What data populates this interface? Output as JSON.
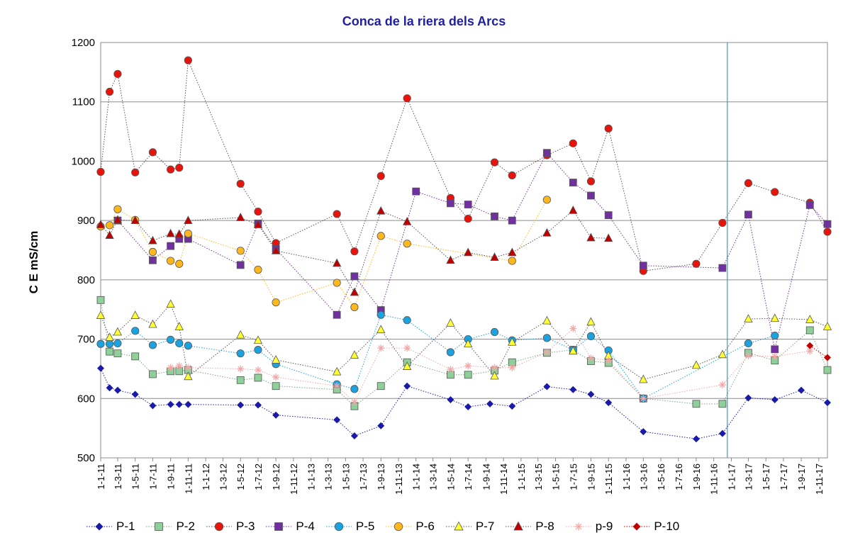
{
  "chart_data": {
    "type": "line",
    "title": "Conca de la riera dels Arcs",
    "ylabel": "C E    mS/cm",
    "xlabel": "",
    "ylim": [
      500,
      1200
    ],
    "yticks": [
      500,
      600,
      700,
      800,
      900,
      1000,
      1100,
      1200
    ],
    "grid": "horizontal",
    "legend": "bottom",
    "x_axis": "date",
    "xlim": [
      "2011-01-01",
      "2017-12-01"
    ],
    "xtick_labels": [
      "1-1-11",
      "1-3-11",
      "1-5-11",
      "1-7-11",
      "1-9-11",
      "1-11-11",
      "1-1-12",
      "1-3-12",
      "1-5-12",
      "1-7-12",
      "1-9-12",
      "1-11-12",
      "1-1-13",
      "1-3-13",
      "1-5-13",
      "1-7-13",
      "1-9-13",
      "1-11-13",
      "1-1-14",
      "1-3-14",
      "1-5-14",
      "1-7-14",
      "1-9-14",
      "1-11-14",
      "1-1-15",
      "1-3-15",
      "1-5-15",
      "1-7-15",
      "1-9-15",
      "1-11-15",
      "1-1-16",
      "1-3-16",
      "1-5-16",
      "1-7-16",
      "1-9-16",
      "1-11-16",
      "1-1-17",
      "1-3-17",
      "1-5-17",
      "1-7-17",
      "1-9-17",
      "1-11-17"
    ],
    "vline_date": "2016-12-18",
    "series": [
      {
        "name": "P-1",
        "color": "#1a1aa8",
        "marker": "diamond",
        "line": "#1a1aa8",
        "points": [
          [
            "2011-01-01",
            651
          ],
          [
            "2011-02-01",
            618
          ],
          [
            "2011-03-01",
            614
          ],
          [
            "2011-05-01",
            607
          ],
          [
            "2011-07-01",
            588
          ],
          [
            "2011-09-01",
            590
          ],
          [
            "2011-10-01",
            590
          ],
          [
            "2011-11-01",
            590
          ],
          [
            "2012-05-01",
            589
          ],
          [
            "2012-07-01",
            589
          ],
          [
            "2012-09-01",
            572
          ],
          [
            "2013-04-01",
            564
          ],
          [
            "2013-06-01",
            537
          ],
          [
            "2013-09-01",
            554
          ],
          [
            "2013-12-01",
            621
          ],
          [
            "2014-05-01",
            598
          ],
          [
            "2014-07-01",
            586
          ],
          [
            "2014-09-15",
            591
          ],
          [
            "2014-12-01",
            587
          ],
          [
            "2015-04-01",
            620
          ],
          [
            "2015-07-01",
            615
          ],
          [
            "2015-09-01",
            607
          ],
          [
            "2015-11-01",
            593
          ],
          [
            "2016-03-01",
            544
          ],
          [
            "2016-09-01",
            532
          ],
          [
            "2016-12-01",
            541
          ],
          [
            "2017-03-01",
            601
          ],
          [
            "2017-06-01",
            598
          ],
          [
            "2017-09-01",
            614
          ],
          [
            "2017-12-01",
            593
          ]
        ]
      },
      {
        "name": "P-2",
        "color": "#8fcf9a",
        "marker": "square",
        "line": "#7aa87f",
        "points": [
          [
            "2011-01-01",
            766
          ],
          [
            "2011-02-01",
            679
          ],
          [
            "2011-03-01",
            676
          ],
          [
            "2011-05-01",
            671
          ],
          [
            "2011-07-01",
            641
          ],
          [
            "2011-09-01",
            646
          ],
          [
            "2011-10-01",
            646
          ],
          [
            "2011-11-01",
            648
          ],
          [
            "2012-05-01",
            631
          ],
          [
            "2012-07-01",
            635
          ],
          [
            "2012-09-01",
            621
          ],
          [
            "2013-04-01",
            615
          ],
          [
            "2013-06-01",
            587
          ],
          [
            "2013-09-01",
            621
          ],
          [
            "2013-12-01",
            661
          ],
          [
            "2014-05-01",
            640
          ],
          [
            "2014-07-01",
            640
          ],
          [
            "2014-10-01",
            647
          ],
          [
            "2014-12-01",
            661
          ],
          [
            "2015-04-01",
            677
          ],
          [
            "2015-07-01",
            682
          ],
          [
            "2015-09-01",
            663
          ],
          [
            "2015-11-01",
            660
          ],
          [
            "2016-03-01",
            600
          ],
          [
            "2016-09-01",
            591
          ],
          [
            "2016-12-01",
            591
          ],
          [
            "2017-03-01",
            677
          ],
          [
            "2017-06-01",
            664
          ],
          [
            "2017-10-01",
            715
          ],
          [
            "2017-12-01",
            648
          ]
        ]
      },
      {
        "name": "P-3",
        "color": "#e8140c",
        "marker": "circle",
        "line": "#555555",
        "points": [
          [
            "2011-01-01",
            982
          ],
          [
            "2011-02-01",
            1117
          ],
          [
            "2011-03-01",
            1147
          ],
          [
            "2011-05-01",
            981
          ],
          [
            "2011-07-01",
            1015
          ],
          [
            "2011-09-01",
            986
          ],
          [
            "2011-10-01",
            989
          ],
          [
            "2011-11-01",
            1170
          ],
          [
            "2012-05-01",
            962
          ],
          [
            "2012-07-01",
            915
          ],
          [
            "2012-09-01",
            862
          ],
          [
            "2013-04-01",
            911
          ],
          [
            "2013-06-01",
            848
          ],
          [
            "2013-09-01",
            975
          ],
          [
            "2013-12-01",
            1106
          ],
          [
            "2014-05-01",
            938
          ],
          [
            "2014-07-01",
            903
          ],
          [
            "2014-10-01",
            998
          ],
          [
            "2014-12-01",
            976
          ],
          [
            "2015-04-01",
            1010
          ],
          [
            "2015-07-01",
            1030
          ],
          [
            "2015-09-01",
            966
          ],
          [
            "2015-11-01",
            1055
          ],
          [
            "2016-03-01",
            815
          ],
          [
            "2016-09-01",
            827
          ],
          [
            "2016-12-01",
            896
          ],
          [
            "2017-03-01",
            963
          ],
          [
            "2017-06-01",
            948
          ],
          [
            "2017-10-01",
            930
          ],
          [
            "2017-12-01",
            881
          ]
        ]
      },
      {
        "name": "P-4",
        "color": "#7030a0",
        "marker": "square",
        "line": "#7030a0",
        "points": [
          [
            "2011-03-01",
            900
          ],
          [
            "2011-07-01",
            833
          ],
          [
            "2011-09-01",
            857
          ],
          [
            "2011-10-01",
            869
          ],
          [
            "2011-11-01",
            869
          ],
          [
            "2012-05-01",
            825
          ],
          [
            "2012-07-01",
            895
          ],
          [
            "2012-09-01",
            852
          ],
          [
            "2013-04-01",
            741
          ],
          [
            "2013-06-01",
            806
          ],
          [
            "2013-09-01",
            749
          ],
          [
            "2014-01-01",
            949
          ],
          [
            "2014-05-01",
            929
          ],
          [
            "2014-07-01",
            927
          ],
          [
            "2014-10-01",
            907
          ],
          [
            "2014-12-01",
            900
          ],
          [
            "2015-04-01",
            1014
          ],
          [
            "2015-07-01",
            964
          ],
          [
            "2015-09-01",
            942
          ],
          [
            "2015-11-01",
            909
          ],
          [
            "2016-03-01",
            824
          ],
          [
            "2016-12-01",
            820
          ],
          [
            "2017-03-01",
            910
          ],
          [
            "2017-06-01",
            683
          ],
          [
            "2017-10-01",
            926
          ],
          [
            "2017-12-01",
            894
          ]
        ]
      },
      {
        "name": "P-5",
        "color": "#1aa3e0",
        "marker": "circle",
        "line": "#1aa3e0",
        "points": [
          [
            "2011-01-01",
            692
          ],
          [
            "2011-02-01",
            692
          ],
          [
            "2011-03-01",
            693
          ],
          [
            "2011-05-01",
            714
          ],
          [
            "2011-07-01",
            690
          ],
          [
            "2011-09-01",
            699
          ],
          [
            "2011-10-01",
            693
          ],
          [
            "2011-11-01",
            689
          ],
          [
            "2012-05-01",
            676
          ],
          [
            "2012-07-01",
            682
          ],
          [
            "2012-09-01",
            658
          ],
          [
            "2013-04-01",
            624
          ],
          [
            "2013-06-01",
            616
          ],
          [
            "2013-09-01",
            741
          ],
          [
            "2013-12-01",
            732
          ],
          [
            "2014-05-01",
            678
          ],
          [
            "2014-07-01",
            700
          ],
          [
            "2014-10-01",
            712
          ],
          [
            "2014-12-01",
            698
          ],
          [
            "2015-04-01",
            702
          ],
          [
            "2015-07-01",
            682
          ],
          [
            "2015-09-01",
            705
          ],
          [
            "2015-11-01",
            681
          ],
          [
            "2016-03-01",
            600
          ],
          [
            "2017-03-01",
            693
          ],
          [
            "2017-06-01",
            706
          ]
        ]
      },
      {
        "name": "P-6",
        "color": "#ffb81c",
        "marker": "circle",
        "line": "#ffb81c",
        "points": [
          [
            "2011-01-01",
            890
          ],
          [
            "2011-02-01",
            892
          ],
          [
            "2011-03-01",
            919
          ],
          [
            "2011-05-01",
            901
          ],
          [
            "2011-07-01",
            847
          ],
          [
            "2011-09-01",
            832
          ],
          [
            "2011-10-01",
            827
          ],
          [
            "2011-11-01",
            878
          ],
          [
            "2012-05-01",
            849
          ],
          [
            "2012-07-01",
            817
          ],
          [
            "2012-09-01",
            762
          ],
          [
            "2013-04-01",
            795
          ],
          [
            "2013-06-01",
            754
          ],
          [
            "2013-09-01",
            874
          ],
          [
            "2013-12-01",
            861
          ],
          [
            "2014-12-01",
            832
          ],
          [
            "2015-04-01",
            935
          ]
        ]
      },
      {
        "name": "P-7",
        "color": "#ffff33",
        "marker": "triangle",
        "line": "#555555",
        "points": [
          [
            "2011-01-01",
            740
          ],
          [
            "2011-02-01",
            703
          ],
          [
            "2011-03-01",
            712
          ],
          [
            "2011-05-01",
            740
          ],
          [
            "2011-07-01",
            725
          ],
          [
            "2011-09-01",
            759
          ],
          [
            "2011-10-01",
            721
          ],
          [
            "2011-11-01",
            637
          ],
          [
            "2012-05-01",
            707
          ],
          [
            "2012-07-01",
            698
          ],
          [
            "2012-09-01",
            665
          ],
          [
            "2013-04-01",
            645
          ],
          [
            "2013-06-01",
            673
          ],
          [
            "2013-09-01",
            716
          ],
          [
            "2013-12-01",
            654
          ],
          [
            "2014-05-01",
            727
          ],
          [
            "2014-07-01",
            692
          ],
          [
            "2014-10-01",
            638
          ],
          [
            "2014-12-01",
            695
          ],
          [
            "2015-04-01",
            731
          ],
          [
            "2015-07-01",
            680
          ],
          [
            "2015-09-01",
            729
          ],
          [
            "2015-11-01",
            672
          ],
          [
            "2016-03-01",
            632
          ],
          [
            "2016-09-01",
            656
          ],
          [
            "2016-12-01",
            674
          ],
          [
            "2017-03-01",
            734
          ],
          [
            "2017-06-01",
            735
          ],
          [
            "2017-10-01",
            733
          ],
          [
            "2017-12-01",
            721
          ]
        ]
      },
      {
        "name": "P-8",
        "color": "#c00000",
        "marker": "triangle",
        "line": "#555555",
        "points": [
          [
            "2011-01-01",
            893
          ],
          [
            "2011-02-01",
            875
          ],
          [
            "2011-03-01",
            901
          ],
          [
            "2011-05-01",
            900
          ],
          [
            "2011-07-01",
            866
          ],
          [
            "2011-09-01",
            878
          ],
          [
            "2011-10-01",
            877
          ],
          [
            "2011-11-01",
            900
          ],
          [
            "2012-05-01",
            905
          ],
          [
            "2012-07-01",
            893
          ],
          [
            "2012-09-01",
            849
          ],
          [
            "2013-04-01",
            828
          ],
          [
            "2013-06-01",
            779
          ],
          [
            "2013-09-01",
            916
          ],
          [
            "2013-12-01",
            898
          ],
          [
            "2014-05-01",
            833
          ],
          [
            "2014-07-01",
            846
          ],
          [
            "2014-10-01",
            838
          ],
          [
            "2014-12-01",
            846
          ],
          [
            "2015-04-01",
            879
          ],
          [
            "2015-07-01",
            917
          ],
          [
            "2015-09-01",
            871
          ],
          [
            "2015-11-01",
            870
          ]
        ]
      },
      {
        "name": "p-9",
        "color": "#f4a6a6",
        "marker": "star",
        "line": "#f4a6a6",
        "points": [
          [
            "2011-09-01",
            652
          ],
          [
            "2011-10-01",
            655
          ],
          [
            "2011-11-01",
            652
          ],
          [
            "2012-05-01",
            650
          ],
          [
            "2012-07-01",
            648
          ],
          [
            "2012-09-01",
            636
          ],
          [
            "2013-04-01",
            621
          ],
          [
            "2013-06-01",
            594
          ],
          [
            "2013-09-01",
            685
          ],
          [
            "2013-12-01",
            685
          ],
          [
            "2014-05-01",
            649
          ],
          [
            "2014-07-01",
            655
          ],
          [
            "2014-10-01",
            652
          ],
          [
            "2014-12-01",
            652
          ],
          [
            "2015-04-01",
            678
          ],
          [
            "2015-07-01",
            718
          ],
          [
            "2015-09-01",
            668
          ],
          [
            "2015-11-01",
            664
          ],
          [
            "2016-03-01",
            600
          ],
          [
            "2016-12-01",
            623
          ],
          [
            "2017-03-01",
            672
          ],
          [
            "2017-06-01",
            671
          ],
          [
            "2017-10-01",
            680
          ]
        ]
      },
      {
        "name": "P-10",
        "color": "#c00000",
        "marker": "diamond",
        "line": "#c00000",
        "points": [
          [
            "2017-10-01",
            689
          ],
          [
            "2017-12-01",
            669
          ]
        ]
      }
    ]
  }
}
